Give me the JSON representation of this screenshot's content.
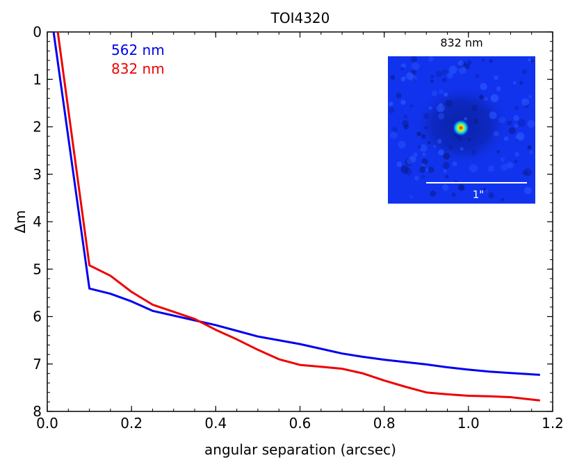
{
  "chart_data": {
    "type": "line",
    "title": "TOI4320",
    "xlabel": "angular separation (arcsec)",
    "ylabel": "Δm",
    "xlim": [
      0.0,
      1.2
    ],
    "ylim": [
      0,
      8
    ],
    "y_inverted": true,
    "x_ticks": [
      "0.0",
      "0.2",
      "0.4",
      "0.6",
      "0.8",
      "1.0",
      "1.2"
    ],
    "y_ticks": [
      "0",
      "1",
      "2",
      "3",
      "4",
      "5",
      "6",
      "7",
      "8"
    ],
    "legend": {
      "placement": "top-left",
      "entries": [
        "562 nm",
        "832 nm"
      ]
    },
    "series": [
      {
        "name": "562 nm",
        "color": "#0000ee",
        "x": [
          0.015,
          0.1,
          0.15,
          0.2,
          0.25,
          0.3,
          0.35,
          0.4,
          0.45,
          0.5,
          0.55,
          0.6,
          0.65,
          0.7,
          0.75,
          0.8,
          0.85,
          0.9,
          0.95,
          1.0,
          1.05,
          1.1,
          1.17
        ],
        "y": [
          0.0,
          5.41,
          5.52,
          5.68,
          5.88,
          5.98,
          6.08,
          6.18,
          6.3,
          6.42,
          6.5,
          6.58,
          6.68,
          6.78,
          6.85,
          6.91,
          6.96,
          7.01,
          7.07,
          7.12,
          7.16,
          7.19,
          7.23
        ]
      },
      {
        "name": "832 nm",
        "color": "#ee0000",
        "x": [
          0.025,
          0.1,
          0.15,
          0.2,
          0.25,
          0.3,
          0.35,
          0.4,
          0.45,
          0.5,
          0.55,
          0.6,
          0.65,
          0.7,
          0.75,
          0.8,
          0.85,
          0.9,
          0.95,
          1.0,
          1.05,
          1.1,
          1.17
        ],
        "y": [
          0.0,
          4.92,
          5.14,
          5.48,
          5.75,
          5.9,
          6.05,
          6.28,
          6.48,
          6.7,
          6.9,
          7.02,
          7.06,
          7.1,
          7.2,
          7.35,
          7.48,
          7.6,
          7.64,
          7.67,
          7.68,
          7.7,
          7.77
        ]
      }
    ],
    "inset": {
      "title": "832 nm",
      "scale_label": "1\"",
      "background_color": "#1133ee"
    }
  }
}
